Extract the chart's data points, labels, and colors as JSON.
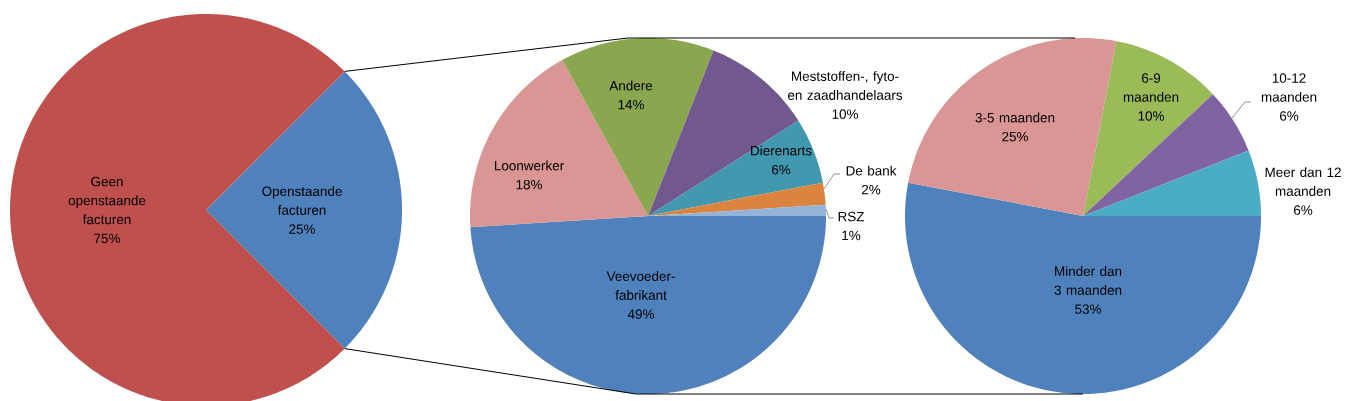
{
  "chart_data": [
    {
      "type": "pie",
      "categories": [
        "Openstaande facturen",
        "Geen openstaande facturen"
      ],
      "values": [
        25,
        75
      ],
      "colors": [
        "#4f81bd",
        "#c0504d"
      ],
      "value_labels": [
        "25%",
        "75%"
      ]
    },
    {
      "type": "pie",
      "categories": [
        "Veevoeder-fabrikant",
        "Loonwerker",
        "Andere",
        "Meststoffen-, fyto- en zaadhandelaars",
        "Dierenarts",
        "De bank",
        "RSZ"
      ],
      "values": [
        49,
        18,
        14,
        10,
        6,
        2,
        1
      ],
      "colors": [
        "#4f81bd",
        "#d99694",
        "#8aa64f",
        "#71588f",
        "#4198af",
        "#db843d",
        "#95b3d7"
      ],
      "value_labels": [
        "49%",
        "18%",
        "14%",
        "10%",
        "6%",
        "2%",
        "1%"
      ]
    },
    {
      "type": "pie",
      "categories": [
        "Minder dan 3 maanden",
        "3-5 maanden",
        "6-9 maanden",
        "10-12 maanden",
        "Meer dan 12 maanden"
      ],
      "values": [
        53,
        25,
        10,
        6,
        6
      ],
      "colors": [
        "#4f81bd",
        "#d99694",
        "#9bbb59",
        "#8064a2",
        "#4bacc6"
      ],
      "value_labels": [
        "53%",
        "25%",
        "10%",
        "6%",
        "6%"
      ]
    }
  ]
}
